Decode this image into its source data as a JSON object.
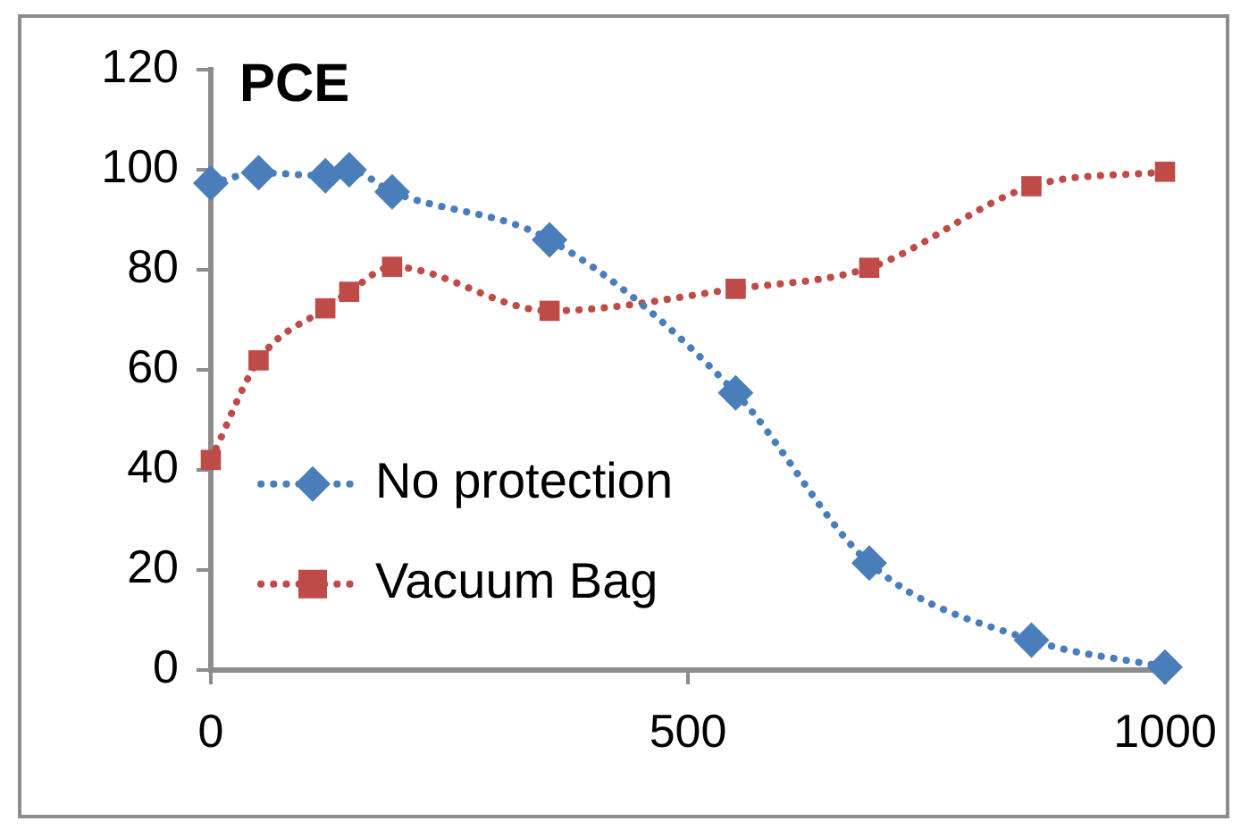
{
  "chart_data": {
    "type": "line",
    "title": "PCE",
    "x": [
      0,
      50,
      120,
      145,
      190,
      355,
      550,
      690,
      860,
      1000
    ],
    "series": [
      {
        "name": "No protection",
        "color": "#4a7ebb",
        "marker": "diamond",
        "values": [
          97.3,
          99.4,
          98.8,
          100,
          95.6,
          86,
          55.4,
          21.4,
          6,
          0.6
        ]
      },
      {
        "name": "Vacuum Bag",
        "color": "#be4b48",
        "marker": "square",
        "values": [
          42,
          61.9,
          72.3,
          75.6,
          80.6,
          71.8,
          76.2,
          80.4,
          96.7,
          99.6
        ]
      }
    ],
    "xlim": [
      0,
      1000
    ],
    "xticks": [
      0,
      500,
      1000
    ],
    "ylim": [
      0,
      120
    ],
    "yticks": [
      0,
      20,
      40,
      60,
      80,
      100,
      120
    ],
    "grid": false,
    "legend": "left",
    "line_style": "dotted"
  }
}
